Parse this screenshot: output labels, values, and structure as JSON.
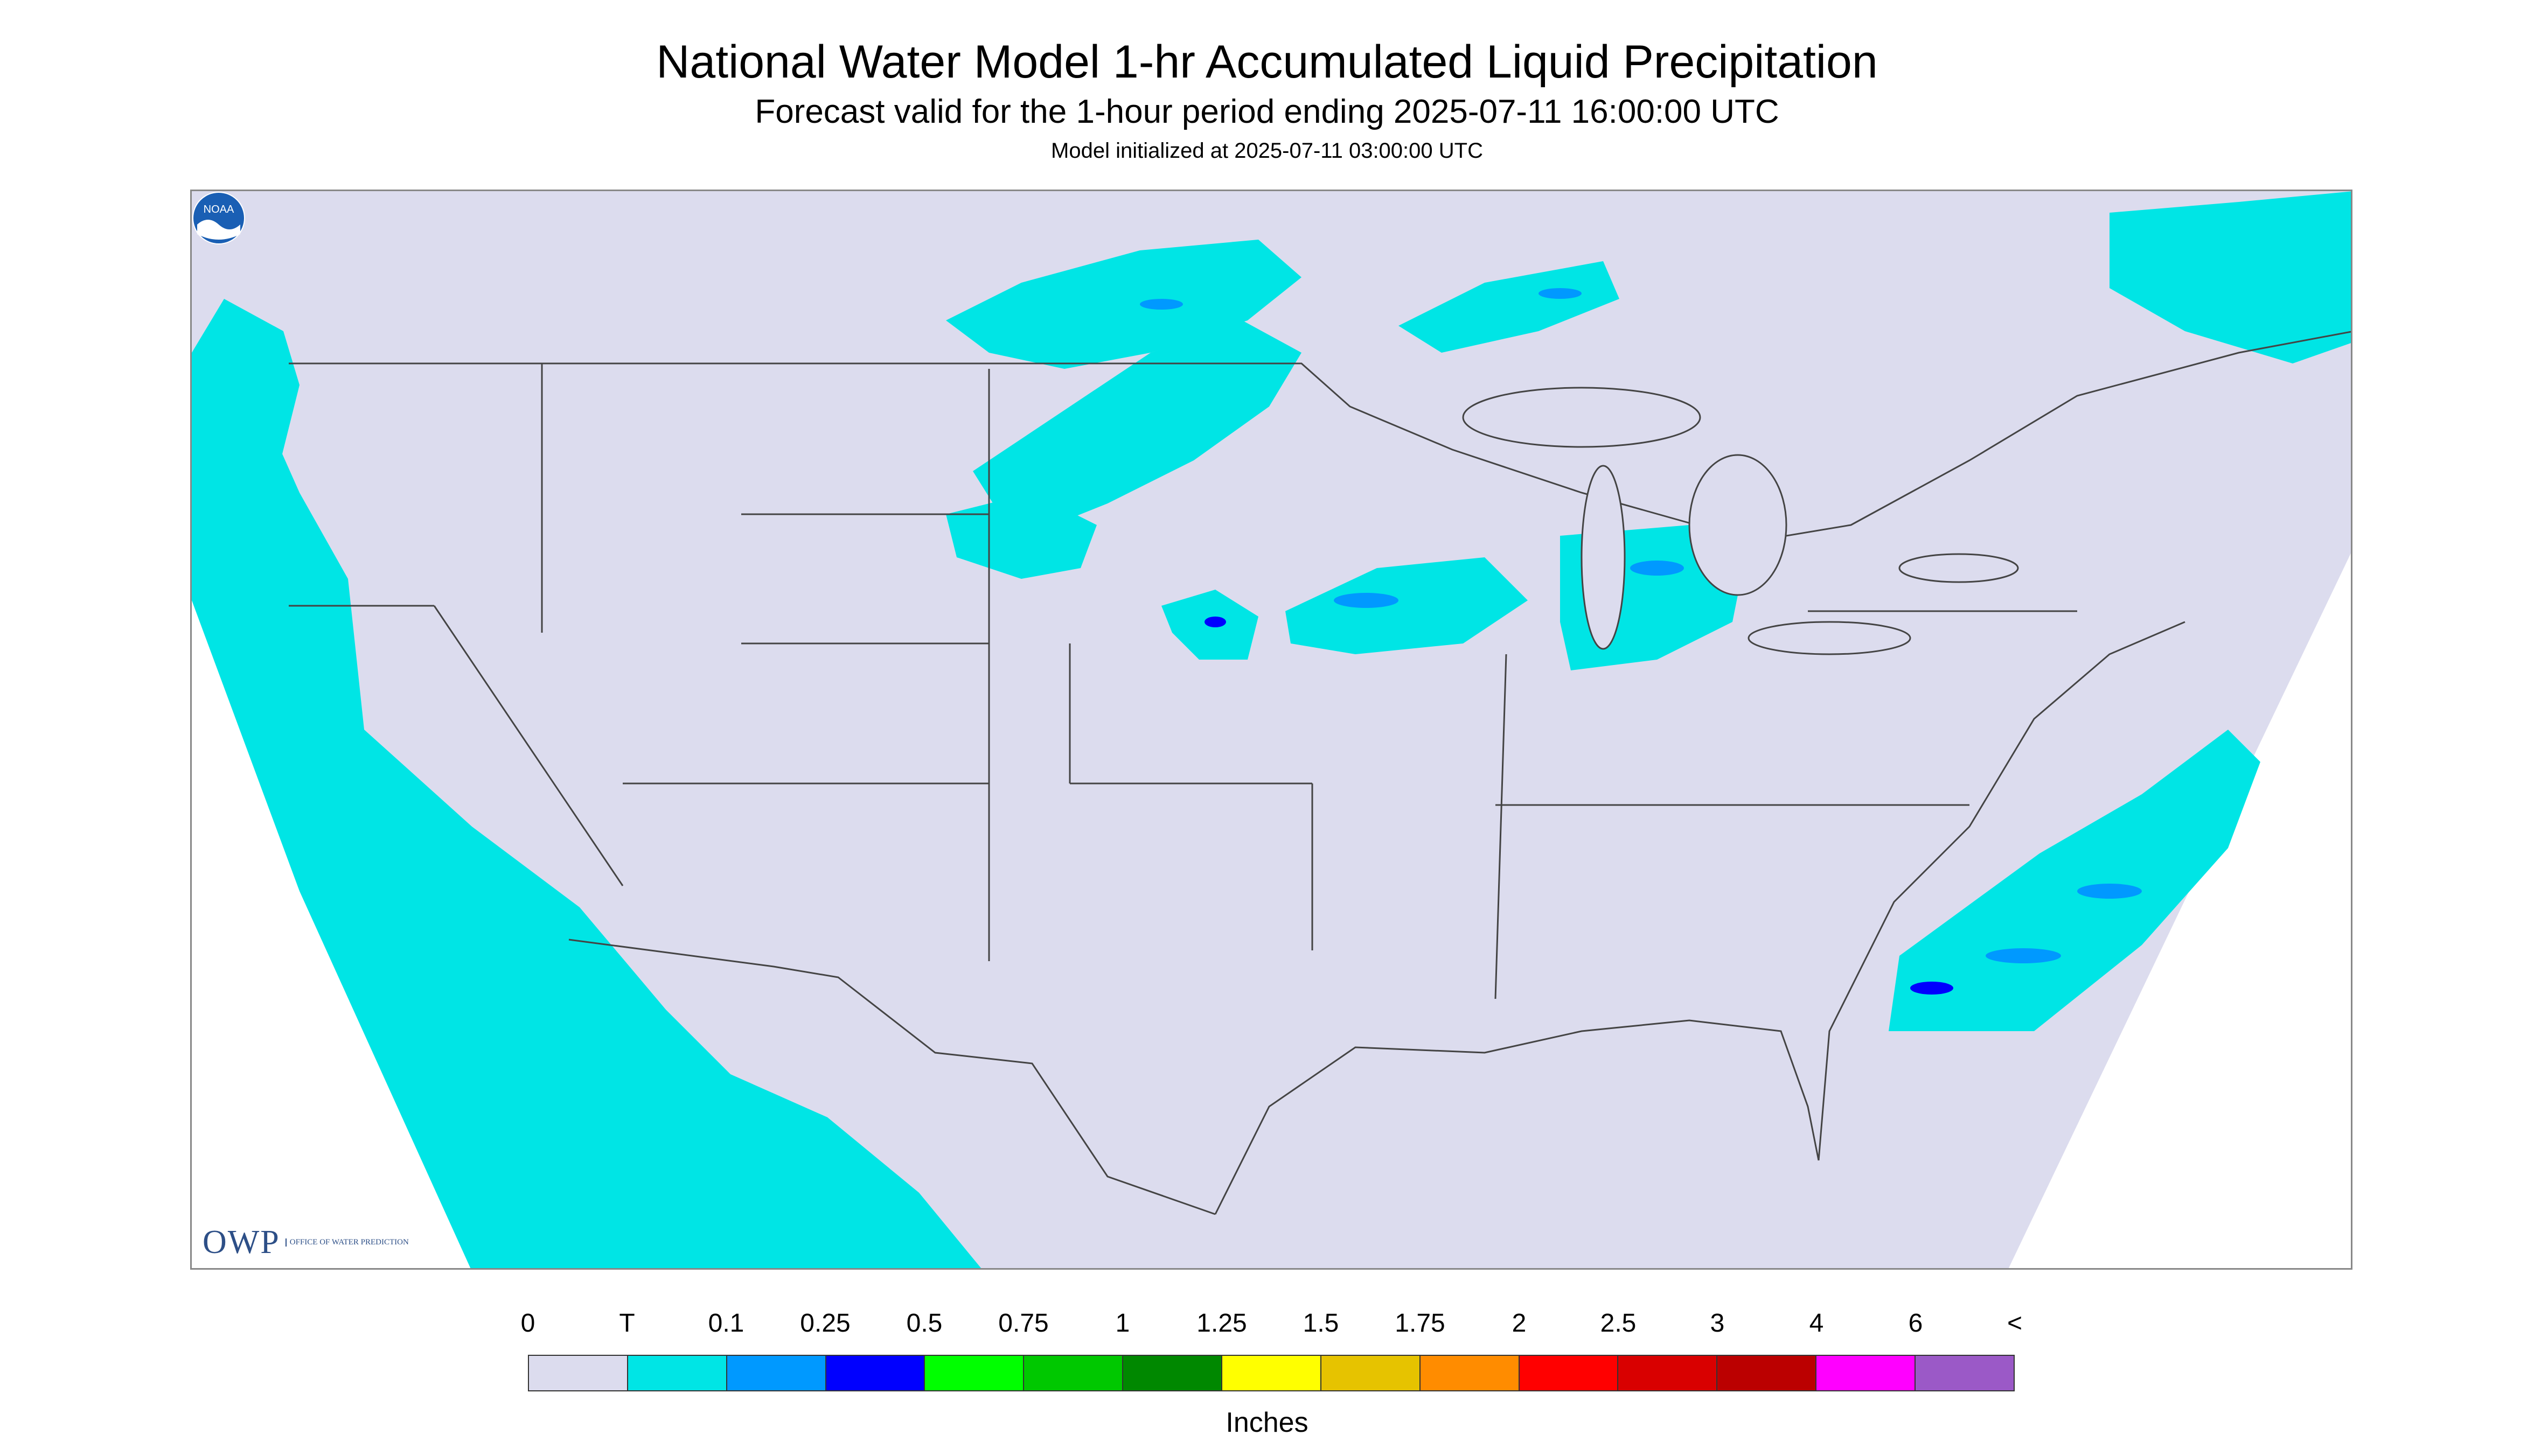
{
  "header": {
    "title": "National Water Model 1-hr Accumulated Liquid Precipitation",
    "subtitle": "Forecast valid for the 1-hour period ending 2025-07-11 16:00:00 UTC",
    "init_line": "Model initialized at 2025-07-11 03:00:00 UTC"
  },
  "map": {
    "background_color": "#dcdcee",
    "precip_light_color": "#00e5e5",
    "precip_mid_color": "#0099ff",
    "precip_heavy_color": "#0000ff",
    "boundary_color": "#444444",
    "outside_color": "#ffffff"
  },
  "branding": {
    "owp_logo_text": "OWP",
    "owp_logo_subtext": "Office of Water Prediction",
    "noaa_logo_text": "NOAA"
  },
  "legend": {
    "ticks": [
      "0",
      "T",
      "0.1",
      "0.25",
      "0.5",
      "0.75",
      "1",
      "1.25",
      "1.5",
      "1.75",
      "2",
      "2.5",
      "3",
      "4",
      "6",
      "<"
    ],
    "colors": [
      "#dcdcee",
      "#00e5e5",
      "#0099ff",
      "#0000ff",
      "#00ff00",
      "#00c800",
      "#008800",
      "#ffff00",
      "#e6c300",
      "#ff8c00",
      "#ff0000",
      "#d90000",
      "#bb0000",
      "#ff00ff",
      "#9b59c7"
    ],
    "units": "Inches"
  }
}
